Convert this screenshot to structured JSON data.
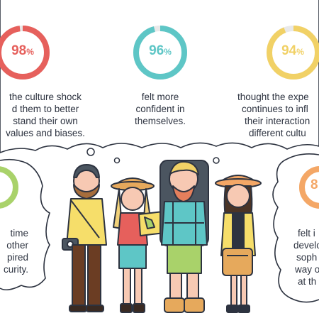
{
  "colors": {
    "red": "#e6605c",
    "teal": "#5ec6c6",
    "yellow": "#f1d166",
    "green": "#a9d26a",
    "orange": "#f4a766",
    "outline": "#2d3340"
  },
  "stats": [
    {
      "value": 98,
      "display": "98",
      "lines": [
        "the culture shock",
        "d them to better",
        "stand their own",
        "values and biases."
      ]
    },
    {
      "value": 96,
      "display": "96",
      "lines": [
        "felt more",
        "confident in",
        "themselves."
      ]
    },
    {
      "value": 94,
      "display": "94",
      "lines": [
        "thought the expe",
        "continues to infl",
        "their interaction",
        "different cultu"
      ]
    },
    {
      "lines": [
        "time",
        "other",
        "pired",
        "curity."
      ]
    },
    {
      "display": "8",
      "lines": [
        "felt i",
        "develo",
        "soph",
        "way o",
        "at th"
      ]
    }
  ],
  "pct_symbol": "%"
}
